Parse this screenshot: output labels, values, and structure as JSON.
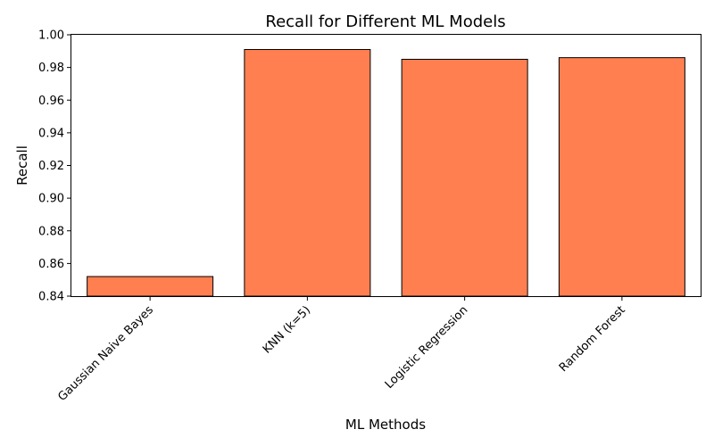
{
  "chart_data": {
    "type": "bar",
    "title": "Recall for Different ML Models",
    "xlabel": "ML Methods",
    "ylabel": "Recall",
    "categories": [
      "Gaussian Naive Bayes",
      "KNN (k=5)",
      "Logistic Regression",
      "Random Forest"
    ],
    "values": [
      0.852,
      0.991,
      0.985,
      0.986
    ],
    "ylim": [
      0.84,
      1.0
    ],
    "yticks": [
      "0.84",
      "0.86",
      "0.88",
      "0.90",
      "0.92",
      "0.94",
      "0.96",
      "0.98",
      "1.00"
    ],
    "grid": false,
    "bar_color": "#ff7f50",
    "bar_edge_color": "#000000"
  }
}
